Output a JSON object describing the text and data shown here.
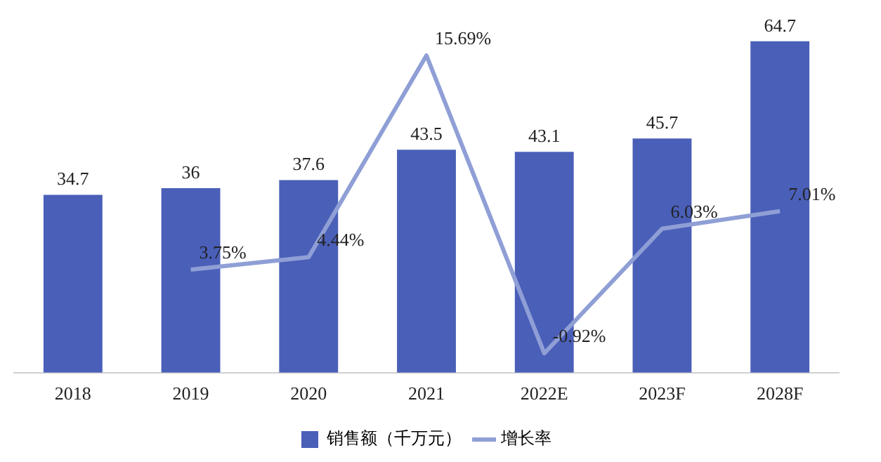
{
  "chart_data": {
    "type": "bar",
    "categories": [
      "2018",
      "2019",
      "2020",
      "2021",
      "2022E",
      "2023F",
      "2028F"
    ],
    "series": [
      {
        "name": "销售额（千万元）",
        "color": "#4a5fb8",
        "values": [
          34.7,
          36,
          37.6,
          43.5,
          43.1,
          45.7,
          64.7
        ],
        "value_labels": [
          "34.7",
          "36",
          "37.6",
          "43.5",
          "43.1",
          "45.7",
          "64.7"
        ]
      },
      {
        "name": "增长率",
        "type": "line",
        "axis": "y2",
        "color": "#8f9fd6",
        "values": [
          null,
          3.75,
          4.44,
          15.69,
          -0.92,
          6.03,
          7.01
        ],
        "value_labels": [
          null,
          "3.75%",
          "4.44%",
          "15.69%",
          "-0.92%",
          "6.03%",
          "7.01%"
        ]
      }
    ],
    "tick_labels": "x",
    "legend": "bottom",
    "grid": false,
    "marker": "none"
  }
}
